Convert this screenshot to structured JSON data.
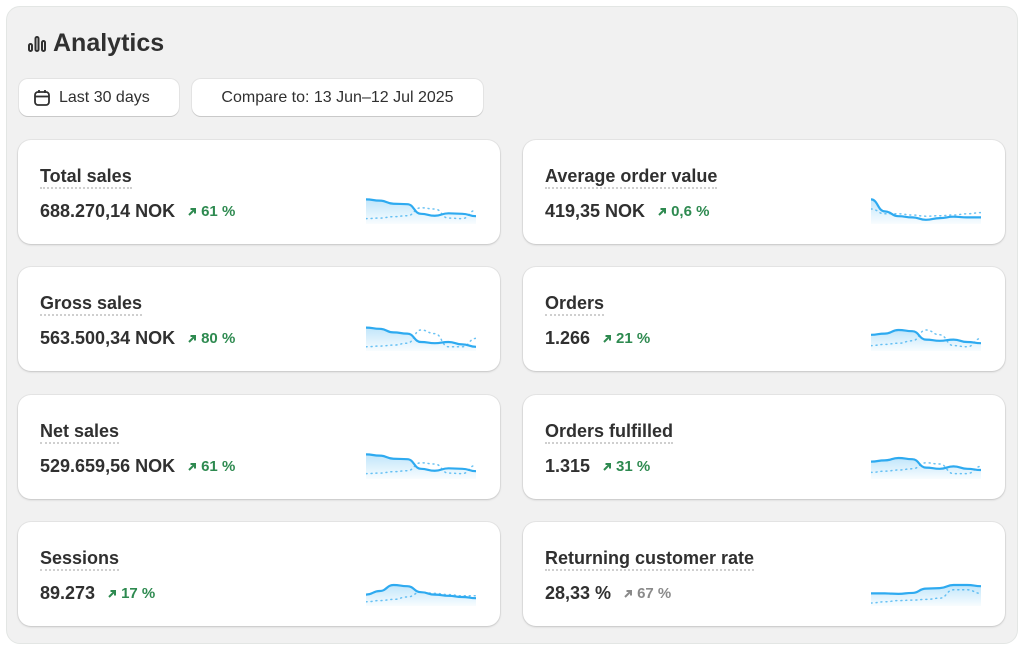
{
  "header": {
    "title": "Analytics",
    "icon": "bar-chart-icon"
  },
  "filters": {
    "date_range": "Last 30 days",
    "compare": "Compare to: 13 Jun–12 Jul 2025"
  },
  "colors": {
    "positive": "#2e8a50",
    "neutral": "#8a8a8a",
    "spark": "#2eaaf0"
  },
  "metrics": [
    {
      "label": "Total sales",
      "value": "688.270,14 NOK",
      "delta": "61 %",
      "trend": "positive",
      "current": [
        0.9,
        0.85,
        0.72,
        0.7,
        0.3,
        0.22,
        0.32,
        0.3,
        0.2
      ],
      "previous": [
        0.1,
        0.12,
        0.18,
        0.22,
        0.55,
        0.5,
        0.12,
        0.1,
        0.45
      ]
    },
    {
      "label": "Average order value",
      "value": "419,35 NOK",
      "delta": "0,6 %",
      "trend": "positive",
      "current": [
        0.9,
        0.4,
        0.2,
        0.15,
        0.05,
        0.12,
        0.18,
        0.15,
        0.15
      ],
      "previous": [
        0.5,
        0.3,
        0.3,
        0.25,
        0.2,
        0.22,
        0.25,
        0.3,
        0.35
      ]
    },
    {
      "label": "Gross sales",
      "value": "563.500,34 NOK",
      "delta": "80 %",
      "trend": "positive",
      "current": [
        0.85,
        0.8,
        0.65,
        0.6,
        0.25,
        0.2,
        0.25,
        0.15,
        0.05
      ],
      "previous": [
        0.05,
        0.08,
        0.12,
        0.2,
        0.75,
        0.6,
        0.05,
        0.05,
        0.4
      ]
    },
    {
      "label": "Orders",
      "value": "1.266",
      "delta": "21 %",
      "trend": "positive",
      "current": [
        0.55,
        0.6,
        0.75,
        0.7,
        0.35,
        0.3,
        0.35,
        0.25,
        0.2
      ],
      "previous": [
        0.1,
        0.15,
        0.2,
        0.3,
        0.75,
        0.55,
        0.1,
        0.05,
        0.4
      ]
    },
    {
      "label": "Net sales",
      "value": "529.659,56 NOK",
      "delta": "61 %",
      "trend": "positive",
      "current": [
        0.9,
        0.85,
        0.72,
        0.7,
        0.3,
        0.22,
        0.32,
        0.3,
        0.2
      ],
      "previous": [
        0.1,
        0.12,
        0.18,
        0.22,
        0.55,
        0.5,
        0.12,
        0.1,
        0.45
      ]
    },
    {
      "label": "Orders fulfilled",
      "value": "1.315",
      "delta": "31 %",
      "trend": "positive",
      "current": [
        0.6,
        0.65,
        0.75,
        0.7,
        0.35,
        0.3,
        0.4,
        0.3,
        0.25
      ],
      "previous": [
        0.15,
        0.2,
        0.25,
        0.3,
        0.55,
        0.5,
        0.1,
        0.1,
        0.4
      ]
    },
    {
      "label": "Sessions",
      "value": "89.273",
      "delta": "17 %",
      "trend": "positive",
      "current": [
        0.35,
        0.5,
        0.75,
        0.7,
        0.45,
        0.35,
        0.3,
        0.25,
        0.2
      ],
      "previous": [
        0.05,
        0.1,
        0.15,
        0.25,
        0.45,
        0.4,
        0.35,
        0.3,
        0.3
      ]
    },
    {
      "label": "Returning customer rate",
      "value": "28,33 %",
      "delta": "67 %",
      "trend": "neutral",
      "current": [
        0.4,
        0.4,
        0.38,
        0.42,
        0.6,
        0.62,
        0.75,
        0.75,
        0.7
      ],
      "previous": [
        0.0,
        0.05,
        0.1,
        0.12,
        0.15,
        0.2,
        0.55,
        0.55,
        0.4
      ]
    }
  ]
}
